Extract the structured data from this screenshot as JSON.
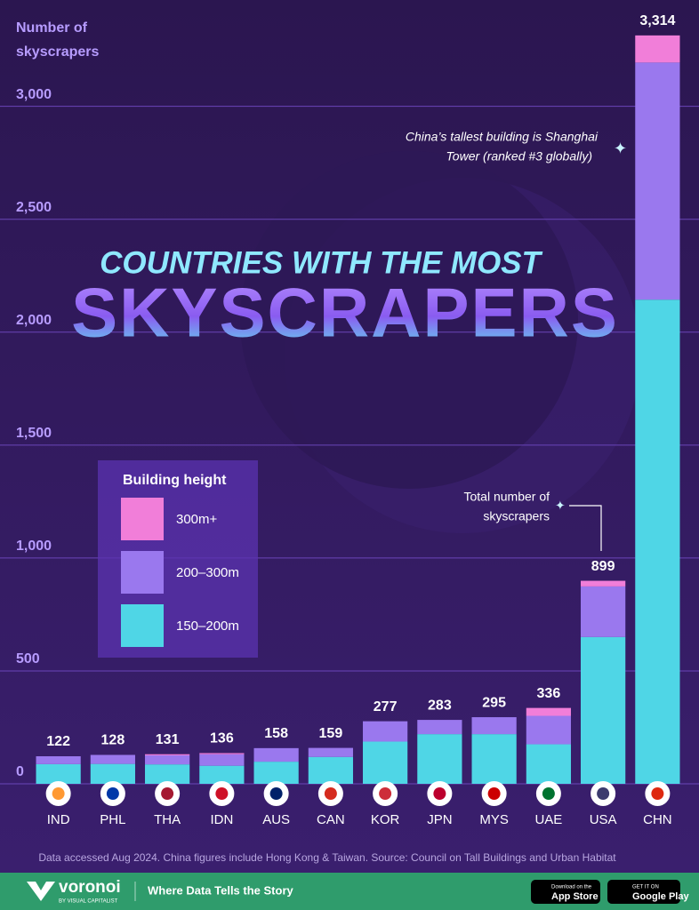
{
  "chart_data": {
    "type": "stacked-bar",
    "title": "COUNTRIES WITH THE MOST",
    "subtitle": "SKYSCRAPERS",
    "y_axis_label": [
      "Number of",
      "skyscrapers"
    ],
    "categories": [
      "IND",
      "PHL",
      "THA",
      "IDN",
      "AUS",
      "CAN",
      "KOR",
      "JPN",
      "MYS",
      "UAE",
      "USA",
      "CHN"
    ],
    "series": [
      {
        "name": "150–200m",
        "color": "#4fd6e6",
        "values": [
          87,
          88,
          86,
          80,
          98,
          119,
          187,
          220,
          220,
          175,
          650,
          2144
        ]
      },
      {
        "name": "200–300m",
        "color": "#9a78ee",
        "values": [
          35,
          40,
          40,
          51,
          60,
          40,
          90,
          63,
          75,
          126,
          224,
          1050
        ]
      },
      {
        "name": "300m+",
        "color": "#f17ed9",
        "values": [
          0,
          0,
          5,
          5,
          0,
          0,
          0,
          0,
          0,
          35,
          25,
          120
        ]
      }
    ],
    "totals": {
      "values": [
        122,
        128,
        131,
        136,
        158,
        159,
        277,
        283,
        295,
        336,
        899,
        3314
      ],
      "value_labels": [
        "122",
        "128",
        "131",
        "136",
        "158",
        "159",
        "277",
        "283",
        "295",
        "336",
        "899",
        "3,314"
      ]
    },
    "ylim": [
      0,
      3400
    ],
    "yticks": [
      0,
      500,
      {
        "value": 1000,
        "label": "1,000"
      },
      {
        "value": 1500,
        "label": "1,500"
      },
      {
        "value": 2000,
        "label": "2,000"
      },
      {
        "value": 2500,
        "label": "2,500"
      },
      {
        "value": 3000,
        "label": "3,000"
      }
    ],
    "grid": true,
    "legend_title": "Building height",
    "annotations": [
      {
        "text": [
          "China’s tallest building is Shanghai",
          "Tower (ranked #3 globally)"
        ]
      },
      {
        "text": [
          "Total number of",
          "skyscrapers"
        ]
      }
    ],
    "source": "Data accessed Aug 2024. China figures include Hong Kong & Taiwan. Source: Council on Tall Buildings and Urban Habitat",
    "footer": {
      "brand": "voronoi",
      "brand_sub": "BY VISUAL CAPITALIST",
      "tagline": "Where Data Tells the Story",
      "app_store": [
        "Download on the",
        "App Store"
      ],
      "google_play": [
        "GET IT ON",
        "Google Play"
      ]
    }
  }
}
